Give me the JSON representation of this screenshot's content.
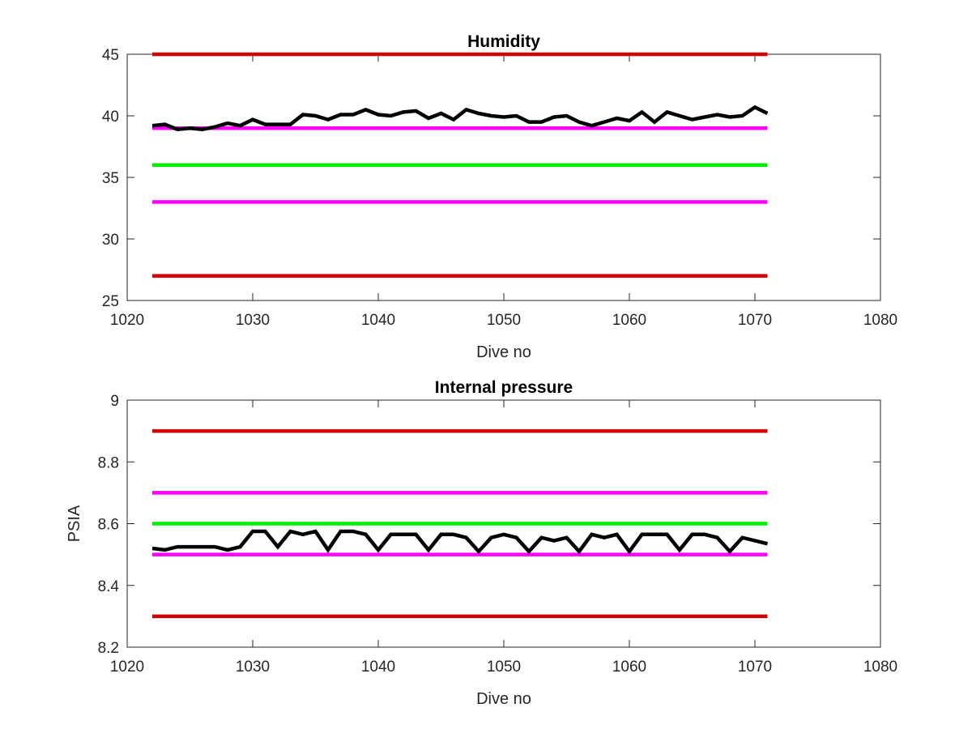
{
  "chart_data": [
    {
      "type": "line",
      "title": "Humidity",
      "xlabel": "Dive no",
      "ylabel": "",
      "xlim": [
        1020,
        1080
      ],
      "ylim": [
        25,
        45
      ],
      "xticks": [
        1020,
        1030,
        1040,
        1050,
        1060,
        1070,
        1080
      ],
      "yticks": [
        25,
        30,
        35,
        40,
        45
      ],
      "grid": false,
      "reference_lines": [
        {
          "y": 45,
          "x_start": 1022,
          "x_end": 1071,
          "color": "#d40000"
        },
        {
          "y": 39,
          "x_start": 1022,
          "x_end": 1071,
          "color": "#ff00ff"
        },
        {
          "y": 36,
          "x_start": 1022,
          "x_end": 1071,
          "color": "#00ee00"
        },
        {
          "y": 33,
          "x_start": 1022,
          "x_end": 1071,
          "color": "#ff00ff"
        },
        {
          "y": 27,
          "x_start": 1022,
          "x_end": 1071,
          "color": "#d40000"
        }
      ],
      "series": [
        {
          "color": "#000000",
          "x": [
            1022,
            1023,
            1024,
            1025,
            1026,
            1027,
            1028,
            1029,
            1030,
            1031,
            1032,
            1033,
            1034,
            1035,
            1036,
            1037,
            1038,
            1039,
            1040,
            1041,
            1042,
            1043,
            1044,
            1045,
            1046,
            1047,
            1048,
            1049,
            1050,
            1051,
            1052,
            1053,
            1054,
            1055,
            1056,
            1057,
            1058,
            1059,
            1060,
            1061,
            1062,
            1063,
            1064,
            1065,
            1066,
            1067,
            1068,
            1069,
            1070,
            1071
          ],
          "values": [
            39.2,
            39.3,
            38.9,
            39.0,
            38.9,
            39.1,
            39.4,
            39.2,
            39.7,
            39.3,
            39.3,
            39.3,
            40.1,
            40.0,
            39.7,
            40.1,
            40.1,
            40.5,
            40.1,
            40.0,
            40.3,
            40.4,
            39.8,
            40.2,
            39.7,
            40.5,
            40.2,
            40.0,
            39.9,
            40.0,
            39.5,
            39.5,
            39.9,
            40.0,
            39.5,
            39.2,
            39.5,
            39.8,
            39.6,
            40.3,
            39.5,
            40.3,
            40.0,
            39.7,
            39.9,
            40.1,
            39.9,
            40.0,
            40.7,
            40.2
          ]
        }
      ]
    },
    {
      "type": "line",
      "title": "Internal pressure",
      "xlabel": "Dive no",
      "ylabel": "PSIA",
      "xlim": [
        1020,
        1080
      ],
      "ylim": [
        8.2,
        9
      ],
      "xticks": [
        1020,
        1030,
        1040,
        1050,
        1060,
        1070,
        1080
      ],
      "yticks": [
        8.2,
        8.4,
        8.6,
        8.8,
        9
      ],
      "grid": false,
      "reference_lines": [
        {
          "y": 8.9,
          "x_start": 1022,
          "x_end": 1071,
          "color": "#d40000"
        },
        {
          "y": 8.7,
          "x_start": 1022,
          "x_end": 1071,
          "color": "#ff00ff"
        },
        {
          "y": 8.6,
          "x_start": 1022,
          "x_end": 1071,
          "color": "#00ee00"
        },
        {
          "y": 8.5,
          "x_start": 1022,
          "x_end": 1071,
          "color": "#ff00ff"
        },
        {
          "y": 8.3,
          "x_start": 1022,
          "x_end": 1071,
          "color": "#d40000"
        }
      ],
      "series": [
        {
          "color": "#000000",
          "x": [
            1022,
            1023,
            1024,
            1025,
            1026,
            1027,
            1028,
            1029,
            1030,
            1031,
            1032,
            1033,
            1034,
            1035,
            1036,
            1037,
            1038,
            1039,
            1040,
            1041,
            1042,
            1043,
            1044,
            1045,
            1046,
            1047,
            1048,
            1049,
            1050,
            1051,
            1052,
            1053,
            1054,
            1055,
            1056,
            1057,
            1058,
            1059,
            1060,
            1061,
            1062,
            1063,
            1064,
            1065,
            1066,
            1067,
            1068,
            1069,
            1070,
            1071
          ],
          "values": [
            8.52,
            8.515,
            8.525,
            8.525,
            8.525,
            8.525,
            8.515,
            8.525,
            8.575,
            8.575,
            8.525,
            8.575,
            8.565,
            8.575,
            8.515,
            8.575,
            8.575,
            8.565,
            8.515,
            8.565,
            8.565,
            8.565,
            8.515,
            8.565,
            8.565,
            8.555,
            8.51,
            8.555,
            8.565,
            8.555,
            8.51,
            8.555,
            8.545,
            8.555,
            8.51,
            8.565,
            8.555,
            8.565,
            8.51,
            8.565,
            8.565,
            8.565,
            8.515,
            8.565,
            8.565,
            8.555,
            8.51,
            8.555,
            8.545,
            8.535
          ]
        }
      ]
    }
  ]
}
